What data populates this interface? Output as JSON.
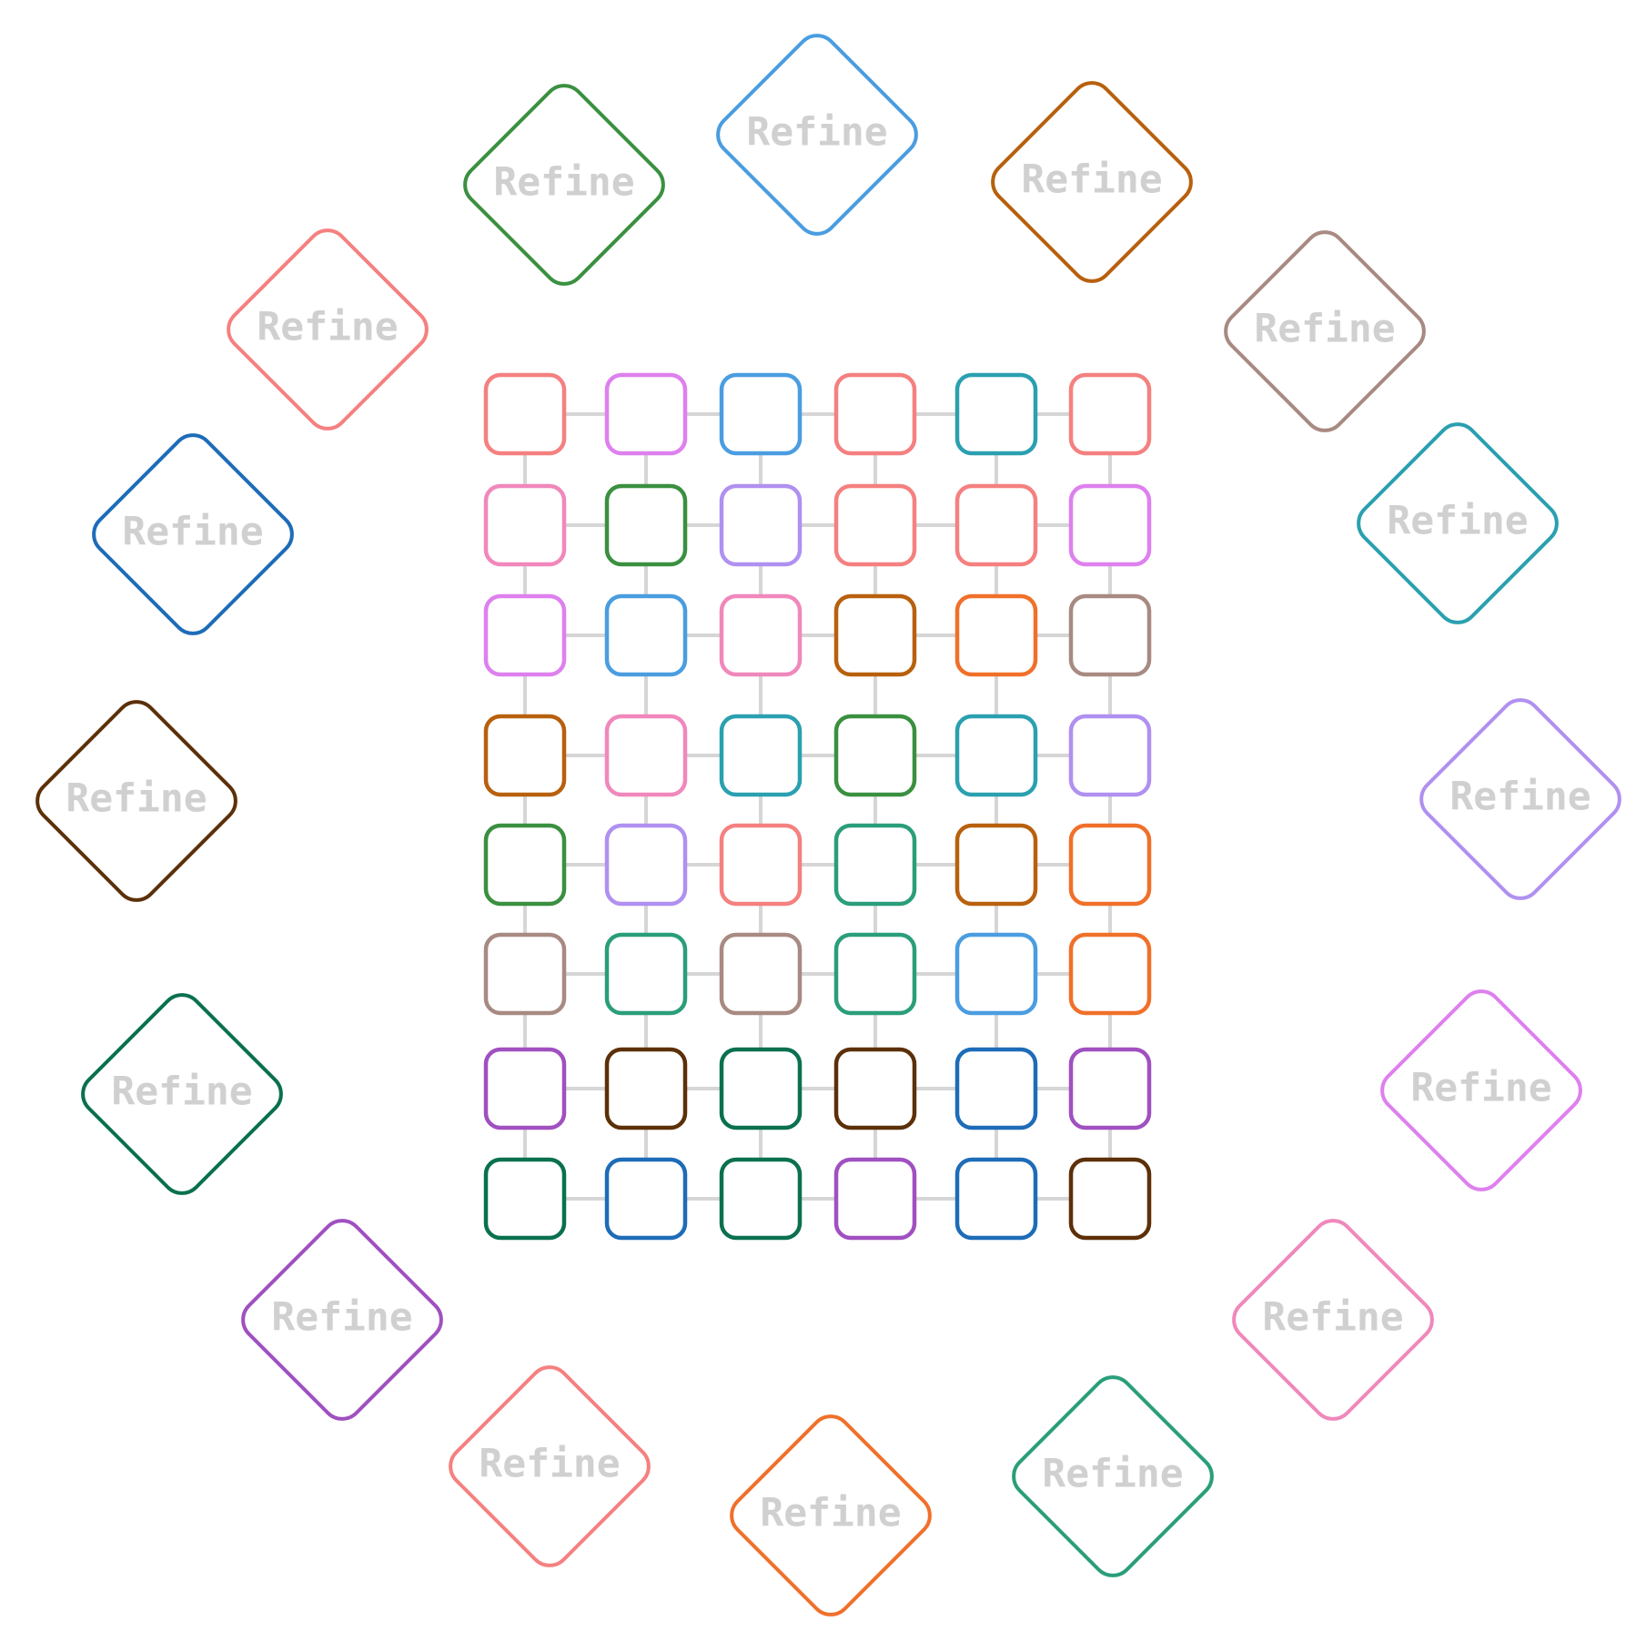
{
  "diamonds": [
    {
      "label": "Refine",
      "color": "#4a9de0"
    },
    {
      "label": "Refine",
      "color": "#b8600e"
    },
    {
      "label": "Refine",
      "color": "#a88a82"
    },
    {
      "label": "Refine",
      "color": "#2aa0b0"
    },
    {
      "label": "Refine",
      "color": "#b090f0"
    },
    {
      "label": "Refine",
      "color": "#de80ee"
    },
    {
      "label": "Refine",
      "color": "#f088bc"
    },
    {
      "label": "Refine",
      "color": "#2a9e7a"
    },
    {
      "label": "Refine",
      "color": "#f0702a"
    },
    {
      "label": "Refine",
      "color": "#f58080"
    },
    {
      "label": "Refine",
      "color": "#a050c0"
    },
    {
      "label": "Refine",
      "color": "#0a7050"
    },
    {
      "label": "Refine",
      "color": "#5c3008"
    },
    {
      "label": "Refine",
      "color": "#1e6cb8"
    },
    {
      "label": "Refine",
      "color": "#f58080"
    },
    {
      "label": "Refine",
      "color": "#3a9040"
    }
  ],
  "grid": {
    "edge_color": "#d6d6d6",
    "rows": [
      [
        "#f58080",
        "#de80ee",
        "#4a9de0",
        "#f58080",
        "#2aa0b0",
        "#f58080"
      ],
      [
        "#f088bc",
        "#3a9040",
        "#b090f0",
        "#f58080",
        "#f58080",
        "#de80ee"
      ],
      [
        "#de80ee",
        "#4a9de0",
        "#f088bc",
        "#b8600e",
        "#f0702a",
        "#a88a82"
      ],
      [
        "#b8600e",
        "#f088bc",
        "#2aa0b0",
        "#3a9040",
        "#2aa0b0",
        "#b090f0"
      ],
      [
        "#3a9040",
        "#b090f0",
        "#f58080",
        "#2a9e7a",
        "#b8600e",
        "#f0702a"
      ],
      [
        "#a88a82",
        "#2a9e7a",
        "#a88a82",
        "#2a9e7a",
        "#4a9de0",
        "#f0702a"
      ],
      [
        "#a050c0",
        "#5c3008",
        "#0a7050",
        "#5c3008",
        "#1e6cb8",
        "#a050c0"
      ],
      [
        "#0a7050",
        "#1e6cb8",
        "#0a7050",
        "#a050c0",
        "#1e6cb8",
        "#5c3008"
      ]
    ]
  }
}
